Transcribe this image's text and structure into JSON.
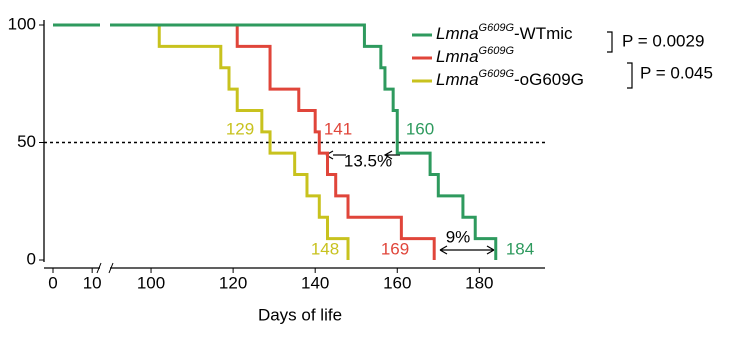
{
  "chart_data": {
    "type": "step",
    "x_label": "Days of life",
    "xlim": [
      0,
      196
    ],
    "xbreak": [
      12,
      90
    ],
    "xticks": [
      0,
      10,
      100,
      120,
      140,
      160,
      180
    ],
    "ylim": [
      0,
      100
    ],
    "yticks": [
      0,
      50,
      100
    ],
    "hline": 50,
    "series": [
      {
        "name": "Lmna",
        "name_superscript": "G609G",
        "name_suffix": "-WTmic",
        "color": "#2e9a5e",
        "x": [
          0,
          152,
          156,
          157,
          159,
          160,
          168,
          170,
          176,
          179,
          184
        ],
        "values": [
          100,
          90.9,
          81.8,
          72.7,
          63.6,
          45.5,
          36.4,
          27.3,
          18.2,
          9.1,
          0
        ]
      },
      {
        "name": "Lmna",
        "name_superscript": "G609G",
        "name_suffix": "",
        "color": "#e0453a",
        "x": [
          0,
          121,
          129,
          136,
          140,
          141,
          143,
          145,
          148,
          161,
          169
        ],
        "values": [
          100,
          90.9,
          72.7,
          63.6,
          54.5,
          45.5,
          36.4,
          27.3,
          18.2,
          9.1,
          0
        ]
      },
      {
        "name": "Lmna",
        "name_superscript": "G609G",
        "name_suffix": "-oG609G",
        "color": "#c8c21e",
        "x": [
          0,
          102,
          117,
          119,
          121,
          127,
          129,
          135,
          138,
          141,
          143,
          148
        ],
        "values": [
          100,
          90.9,
          81.8,
          72.7,
          63.6,
          54.5,
          45.5,
          36.4,
          27.3,
          18.2,
          9.1,
          0
        ]
      }
    ],
    "comparisons": [
      "P = 0.0029",
      "P = 0.045"
    ],
    "annotations": [
      {
        "text": "129",
        "color": "#c8c21e"
      },
      {
        "text": "141",
        "color": "#e0453a"
      },
      {
        "text": "160",
        "color": "#2e9a5e"
      },
      {
        "text": "148",
        "color": "#c8c21e"
      },
      {
        "text": "169",
        "color": "#e0453a"
      },
      {
        "text": "184",
        "color": "#2e9a5e"
      },
      {
        "text": "13.5%",
        "color": "#000000"
      },
      {
        "text": "9%",
        "color": "#000000"
      }
    ]
  }
}
